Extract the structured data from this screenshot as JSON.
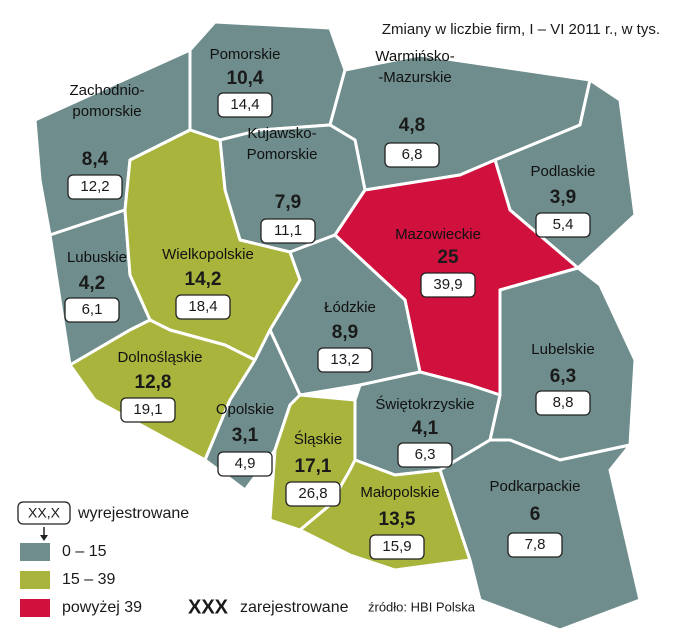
{
  "title": "Zmiany w liczbie firm, I – VI 2011 r., w tys.",
  "regions": [
    {
      "name": [
        "Pomorskie"
      ],
      "registered": "10,4",
      "deregistered": "14,4",
      "class": 0
    },
    {
      "name": [
        "Zachodnio-",
        "pomorskie"
      ],
      "registered": "8,4",
      "deregistered": "12,2",
      "class": 0
    },
    {
      "name": [
        "Warmińsko-",
        "-Mazurskie"
      ],
      "registered": "4,8",
      "deregistered": "6,8",
      "class": 0
    },
    {
      "name": [
        "Kujawsko-",
        "Pomorskie"
      ],
      "registered": "7,9",
      "deregistered": "11,1",
      "class": 0
    },
    {
      "name": [
        "Podlaskie"
      ],
      "registered": "3,9",
      "deregistered": "5,4",
      "class": 0
    },
    {
      "name": [
        "Lubuskie"
      ],
      "registered": "4,2",
      "deregistered": "6,1",
      "class": 0
    },
    {
      "name": [
        "Wielkopolskie"
      ],
      "registered": "14,2",
      "deregistered": "18,4",
      "class": 1
    },
    {
      "name": [
        "Mazowieckie"
      ],
      "registered": "25",
      "deregistered": "39,9",
      "class": 2
    },
    {
      "name": [
        "Łódzkie"
      ],
      "registered": "8,9",
      "deregistered": "13,2",
      "class": 0
    },
    {
      "name": [
        "Lubelskie"
      ],
      "registered": "6,3",
      "deregistered": "8,8",
      "class": 0
    },
    {
      "name": [
        "Dolnośląskie"
      ],
      "registered": "12,8",
      "deregistered": "19,1",
      "class": 1
    },
    {
      "name": [
        "Świętokrzyskie"
      ],
      "registered": "4,1",
      "deregistered": "6,3",
      "class": 0
    },
    {
      "name": [
        "Opolskie"
      ],
      "registered": "3,1",
      "deregistered": "4,9",
      "class": 0
    },
    {
      "name": [
        "Śląskie"
      ],
      "registered": "17,1",
      "deregistered": "26,8",
      "class": 1
    },
    {
      "name": [
        "Małopolskie"
      ],
      "registered": "13,5",
      "deregistered": "15,9",
      "class": 1
    },
    {
      "name": [
        "Podkarpackie"
      ],
      "registered": "6",
      "deregistered": "7,8",
      "class": 0
    }
  ],
  "legend": {
    "boxed_sample": "XX,X",
    "boxed_label": "wyrejestrowane",
    "classes": [
      {
        "label": "0 – 15",
        "color": "#6e8d8c"
      },
      {
        "label": "15 – 39",
        "color": "#a8b43c"
      },
      {
        "label": "powyżej 39",
        "color": "#d0103d"
      }
    ],
    "bold_sample": "XXX",
    "bold_label": "zarejestrowane"
  },
  "source": "źródło: HBI Polska"
}
